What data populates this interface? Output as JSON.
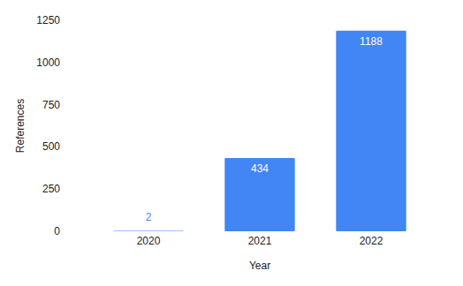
{
  "chart_data": {
    "type": "bar",
    "x_label": "Year",
    "y_label": "References",
    "categories": [
      "2020",
      "2021",
      "2022"
    ],
    "values": [
      2,
      434,
      1188
    ],
    "color": "#4285f4",
    "ylim": [
      0,
      1250
    ],
    "yticks": [
      0,
      250,
      500,
      750,
      1000,
      1250
    ],
    "grid": false,
    "data_labels": true
  }
}
